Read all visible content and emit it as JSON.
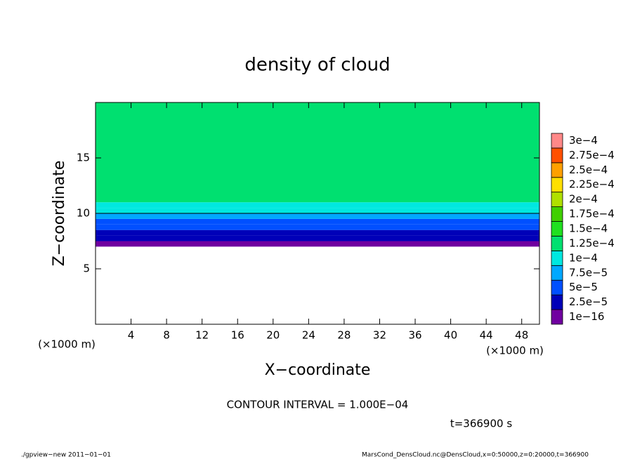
{
  "chart_data": {
    "type": "contour",
    "title": "density of cloud",
    "xlabel": "X−coordinate",
    "ylabel": "Z−coordinate",
    "x_unit_left": "(×1000 m)",
    "x_unit_right": "(×1000 m)",
    "xlim": [
      0,
      50
    ],
    "ylim": [
      0,
      20
    ],
    "xticks": [
      4,
      8,
      12,
      16,
      20,
      24,
      28,
      32,
      36,
      40,
      44,
      48
    ],
    "yticks": [
      5,
      10,
      15
    ],
    "colorbar": {
      "levels": [
        1e-16,
        2.5e-05,
        5e-05,
        7.5e-05,
        0.0001,
        0.000125,
        0.00015,
        0.000175,
        0.0002,
        0.000225,
        0.00025,
        0.000275,
        0.0003
      ],
      "labels": [
        "1e−16",
        "2.5e−5",
        "5e−5",
        "7.5e−5",
        "1e−4",
        "1.25e−4",
        "1.5e−4",
        "1.75e−4",
        "2e−4",
        "2.25e−4",
        "2.5e−4",
        "2.75e−4",
        "3e−4"
      ],
      "colors": [
        "#7000a0",
        "#0000b8",
        "#0050ff",
        "#00a8ff",
        "#00e8e0",
        "#00e070",
        "#20e020",
        "#40d000",
        "#b0e000",
        "#ffe000",
        "#ffa000",
        "#ff5000",
        "#ff8888"
      ]
    },
    "profile": {
      "z": [
        7.0,
        7.5,
        8.0,
        8.5,
        9.0,
        9.5,
        10.0,
        10.5,
        11.0
      ],
      "values": [
        1e-16,
        2.5e-05,
        3e-05,
        5e-05,
        6e-05,
        7.5e-05,
        0.0001,
        0.00011,
        0.00013
      ]
    },
    "contour_level": 0.0001,
    "contour_text": "CONTOUR INTERVAL = 1.000E−04",
    "time_text": "t=366900 s",
    "footer_left": "./gpview−new   2011−01−01",
    "footer_right": "MarsCond_DensCloud.nc@DensCloud,x=0:50000,z=0:20000,t=366900"
  }
}
